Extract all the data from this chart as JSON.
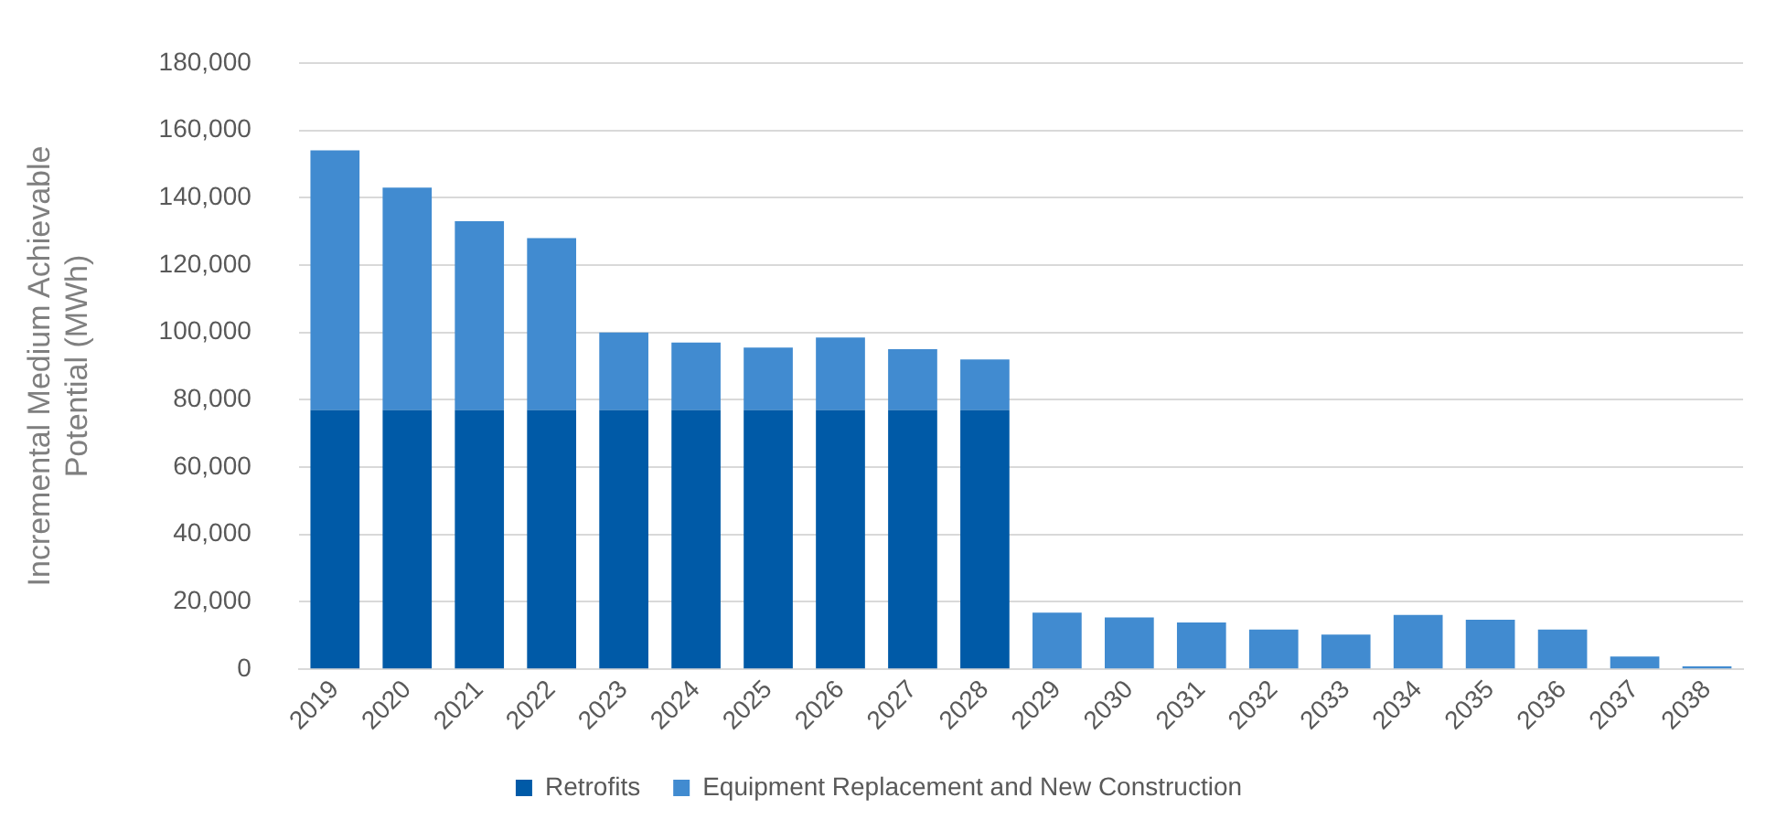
{
  "chart_data": {
    "type": "bar",
    "stacked": true,
    "ylabel": "Incremental Medium Achievable Potential (MWh)",
    "categories": [
      "2019",
      "2020",
      "2021",
      "2022",
      "2023",
      "2024",
      "2025",
      "2026",
      "2027",
      "2028",
      "2029",
      "2030",
      "2031",
      "2032",
      "2033",
      "2034",
      "2035",
      "2036",
      "2037",
      "2038"
    ],
    "series": [
      {
        "name": "Retrofits",
        "color": "#005aa7",
        "values": [
          77000,
          77000,
          77000,
          77000,
          77000,
          77000,
          77000,
          77000,
          77000,
          77000,
          0,
          0,
          0,
          0,
          0,
          0,
          0,
          0,
          0,
          0
        ]
      },
      {
        "name": "Equipment Replacement and New Construction",
        "color": "#418bd0",
        "values": [
          77000,
          66000,
          56000,
          51000,
          23000,
          20000,
          18500,
          21500,
          18000,
          15000,
          16800,
          15400,
          13900,
          11800,
          10300,
          16100,
          14700,
          11800,
          3800,
          900
        ]
      }
    ],
    "ylim": [
      0,
      180000
    ],
    "yticks": [
      {
        "value": 0,
        "label": "0"
      },
      {
        "value": 20000,
        "label": "20,000"
      },
      {
        "value": 40000,
        "label": "40,000"
      },
      {
        "value": 60000,
        "label": "60,000"
      },
      {
        "value": 80000,
        "label": "80,000"
      },
      {
        "value": 100000,
        "label": "100,000"
      },
      {
        "value": 120000,
        "label": "120,000"
      },
      {
        "value": 140000,
        "label": "140,000"
      },
      {
        "value": 160000,
        "label": "160,000"
      },
      {
        "value": 180000,
        "label": "180,000"
      }
    ],
    "grid": "y",
    "legend": "bottom"
  }
}
